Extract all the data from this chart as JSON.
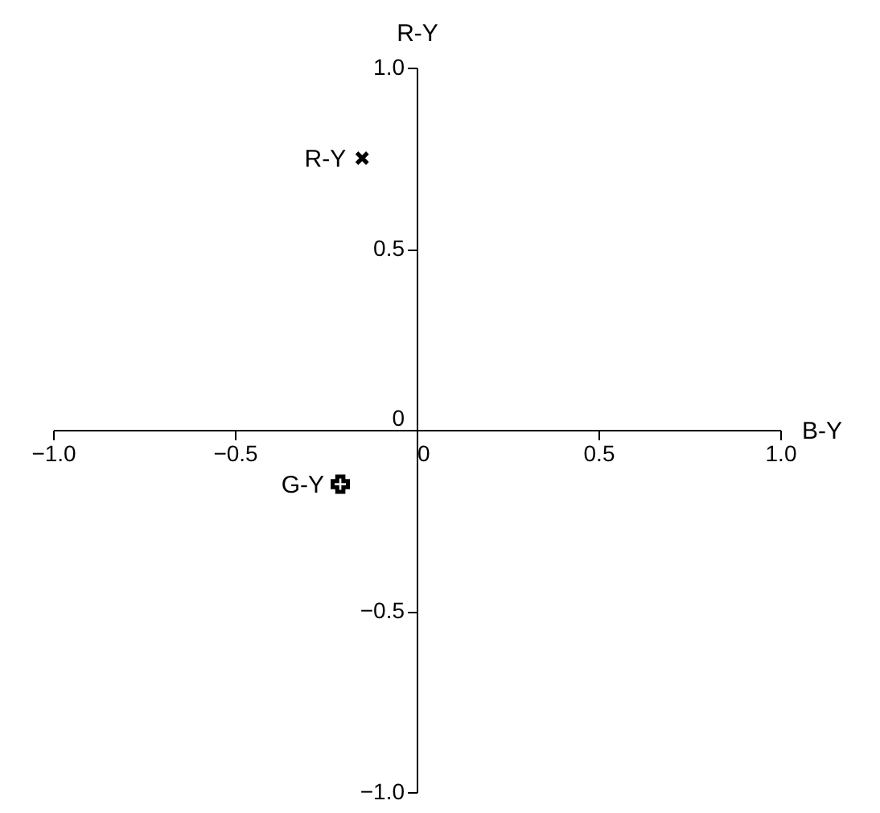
{
  "chart_data": {
    "type": "scatter",
    "xlabel": "B-Y",
    "ylabel": "R-Y",
    "xlim": [
      -1.0,
      1.0
    ],
    "ylim": [
      -1.0,
      1.0
    ],
    "xticks": [
      {
        "value": -1.0,
        "label": "−1.0"
      },
      {
        "value": -0.5,
        "label": "−0.5"
      },
      0,
      {
        "value": 0.5,
        "label": "0.5"
      },
      {
        "value": 1.0,
        "label": "1.0"
      }
    ],
    "yticks": [
      {
        "value": -1.0,
        "label": "−1.0"
      },
      {
        "value": -0.5,
        "label": "−0.5"
      },
      0,
      {
        "value": 0.5,
        "label": "0.5"
      },
      {
        "value": 1.0,
        "label": "1.0"
      }
    ],
    "grid": false,
    "series": [
      {
        "name": "R-Y",
        "color": "#000000",
        "marker": "cross_x",
        "x": [
          -0.15
        ],
        "values": [
          0.75
        ]
      },
      {
        "name": "G-Y",
        "color": "#000000",
        "marker": "cross",
        "x": [
          -0.21
        ],
        "values": [
          -0.15
        ]
      }
    ]
  }
}
